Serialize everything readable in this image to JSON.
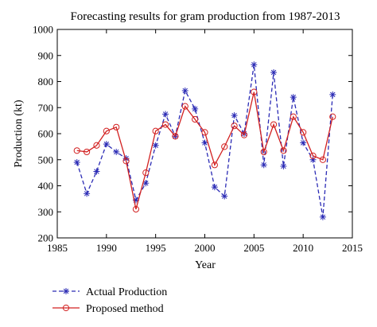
{
  "chart_data": {
    "type": "line",
    "title": "Forecasting results for gram production from 1987-2013",
    "xlabel": "Year",
    "ylabel": "Production (kt)",
    "xlim": [
      1985,
      2015
    ],
    "ylim": [
      200,
      1000
    ],
    "xticks": [
      "1985",
      "1990",
      "1995",
      "2000",
      "2005",
      "2010",
      "2015"
    ],
    "yticks": [
      "200",
      "300",
      "400",
      "500",
      "600",
      "700",
      "800",
      "900",
      "1000"
    ],
    "grid": false,
    "legend_position": "bottom-left",
    "x": [
      1987,
      1988,
      1989,
      1990,
      1991,
      1992,
      1993,
      1994,
      1995,
      1996,
      1997,
      1998,
      1999,
      2000,
      2001,
      2002,
      2003,
      2004,
      2005,
      2006,
      2007,
      2008,
      2009,
      2010,
      2011,
      2012,
      2013
    ],
    "series": [
      {
        "name": "Actual Production",
        "color": "#2b2bb5",
        "line_style": "dashed",
        "marker": "asterisk",
        "values": [
          490,
          370,
          455,
          560,
          530,
          505,
          345,
          410,
          555,
          675,
          590,
          765,
          695,
          565,
          395,
          360,
          670,
          600,
          865,
          480,
          835,
          475,
          740,
          565,
          500,
          280,
          750
        ]
      },
      {
        "name": "Proposed method",
        "color": "#d22020",
        "line_style": "solid",
        "marker": "circle",
        "values": [
          535,
          530,
          555,
          610,
          625,
          495,
          310,
          450,
          610,
          635,
          590,
          705,
          655,
          605,
          480,
          550,
          630,
          595,
          760,
          530,
          635,
          535,
          665,
          605,
          515,
          500,
          665
        ]
      }
    ]
  }
}
